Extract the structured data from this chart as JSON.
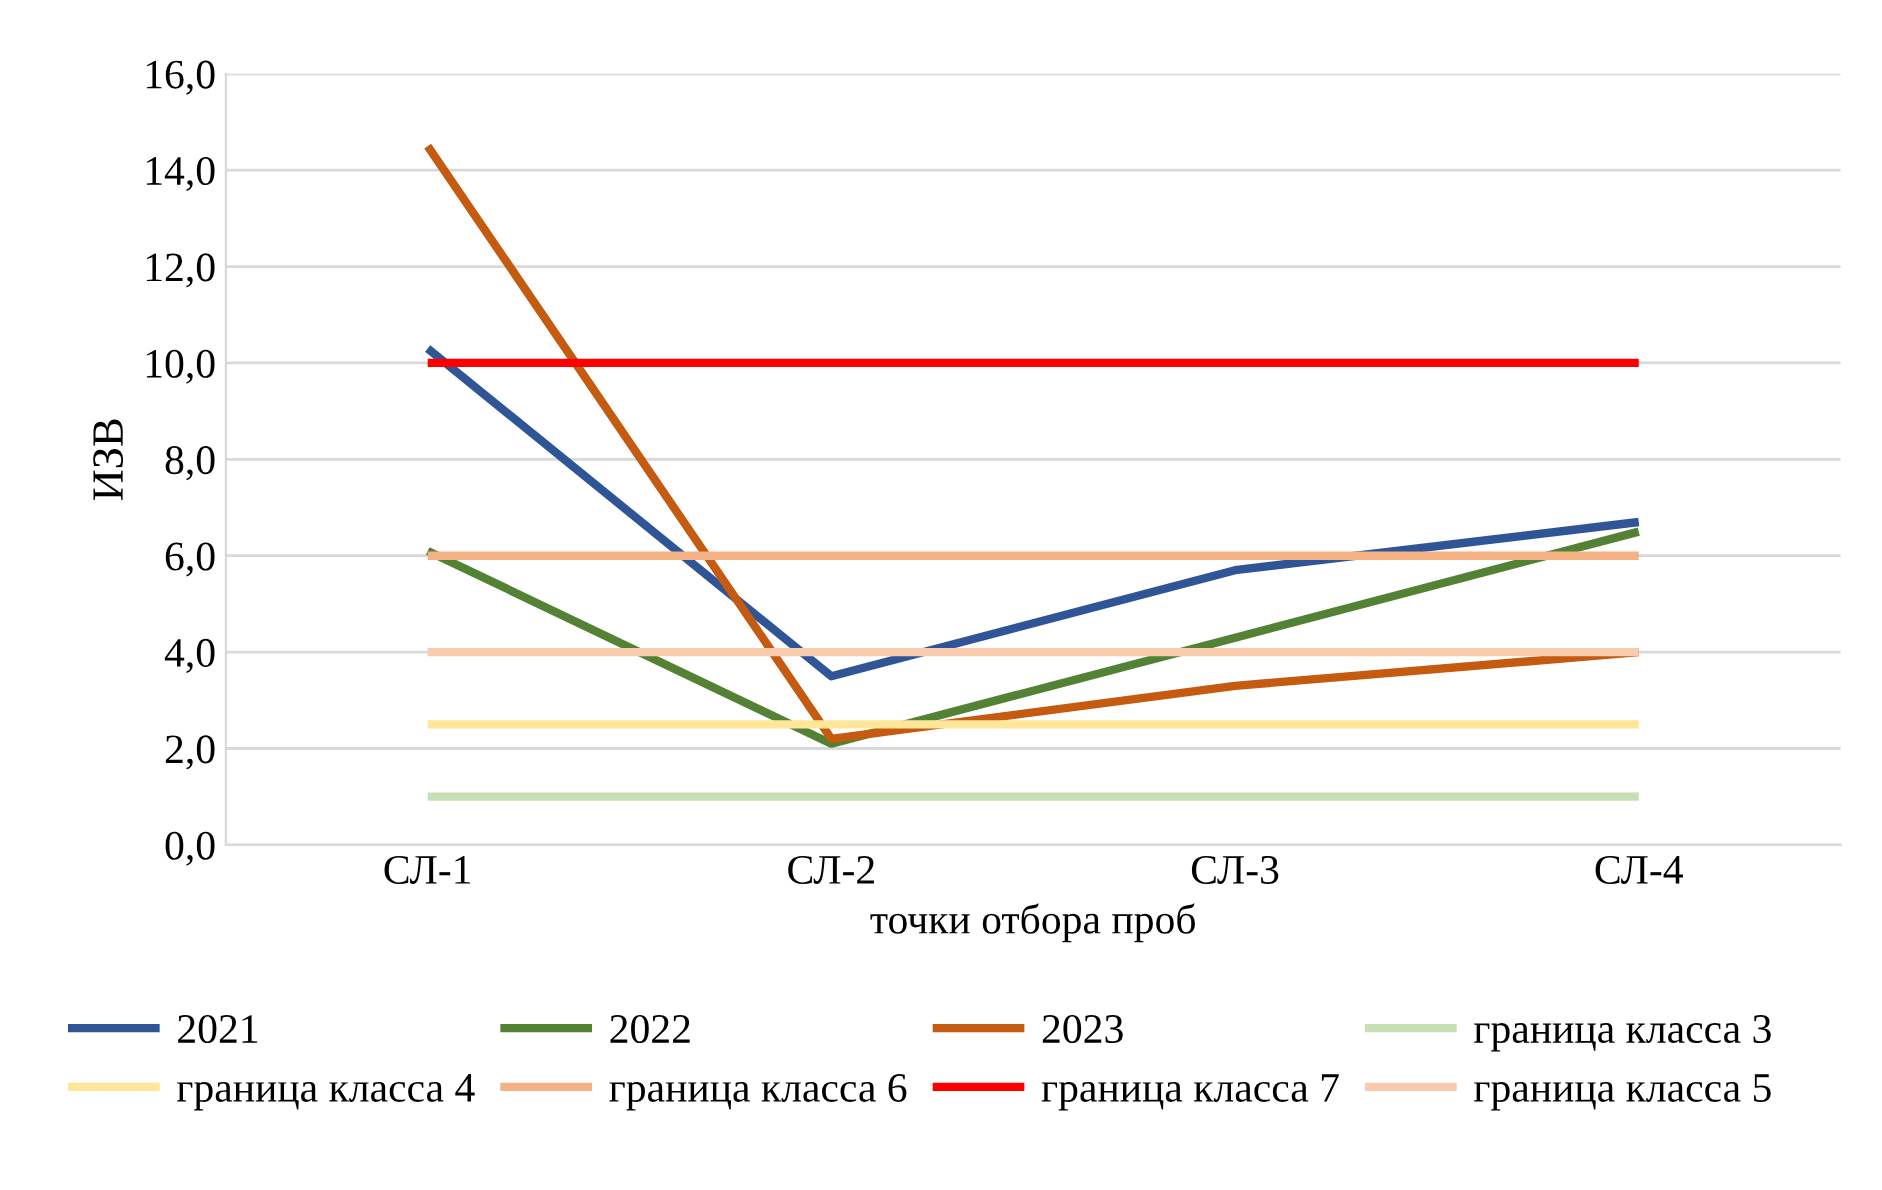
{
  "chart_data": {
    "type": "line",
    "xlabel": "точки отбора проб",
    "ylabel": "ИЗВ",
    "categories": [
      "СЛ-1",
      "СЛ-2",
      "СЛ-3",
      "СЛ-4"
    ],
    "series": [
      {
        "name": "2021",
        "color": "#2f5597",
        "values": [
          10.3,
          3.5,
          5.7,
          6.7
        ]
      },
      {
        "name": "2022",
        "color": "#548235",
        "values": [
          6.1,
          2.1,
          4.3,
          6.5
        ]
      },
      {
        "name": "2023",
        "color": "#c55a11",
        "values": [
          14.5,
          2.2,
          3.3,
          4.0
        ]
      },
      {
        "name": "граница класса 3",
        "color": "#c5e0b4",
        "values": [
          1.0,
          1.0,
          1.0,
          1.0
        ]
      },
      {
        "name": "граница класса 4",
        "color": "#ffe699",
        "values": [
          2.5,
          2.5,
          2.5,
          2.5
        ]
      },
      {
        "name": "граница класса 6",
        "color": "#f4b183",
        "values": [
          6.0,
          6.0,
          6.0,
          6.0
        ]
      },
      {
        "name": "граница класса 7",
        "color": "#ff0000",
        "values": [
          10.0,
          10.0,
          10.0,
          10.0
        ]
      },
      {
        "name": "граница класса 5",
        "color": "#f8cbad",
        "values": [
          4.0,
          4.0,
          4.0,
          4.0
        ]
      }
    ],
    "ylim": [
      0,
      16
    ],
    "yticks": [
      {
        "value": 0,
        "label": "0,0"
      },
      {
        "value": 2,
        "label": "2,0"
      },
      {
        "value": 4,
        "label": "4,0"
      },
      {
        "value": 6,
        "label": "6,0"
      },
      {
        "value": 8,
        "label": "8,0"
      },
      {
        "value": 10,
        "label": "10,0"
      },
      {
        "value": 12,
        "label": "12,0"
      },
      {
        "value": 14,
        "label": "14,0"
      },
      {
        "value": 16,
        "label": "16,0"
      }
    ],
    "grid": "y",
    "legend": "bottom",
    "marker": "none",
    "line_style": "solid"
  }
}
